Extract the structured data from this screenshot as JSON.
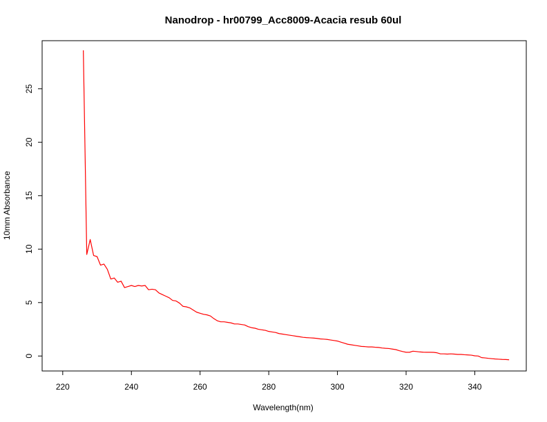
{
  "chart_data": {
    "type": "line",
    "title": "Nanodrop - hr00799_Acc8009-Acacia resub 60ul",
    "xlabel": "Wavelength(nm)",
    "ylabel": "10mm Absorbance",
    "xlim": [
      214,
      355
    ],
    "ylim": [
      -1.4,
      29.5
    ],
    "xticks": [
      220,
      240,
      260,
      280,
      300,
      320,
      340
    ],
    "yticks": [
      0,
      5,
      10,
      15,
      20,
      25
    ],
    "grid": false,
    "line_color": "#ff0000",
    "series": [
      {
        "x": [
          226,
          227,
          228,
          229,
          230,
          231,
          232,
          233,
          234,
          235,
          236,
          237,
          238,
          239,
          240,
          241,
          242,
          243,
          244,
          245,
          246,
          247,
          248,
          249,
          250,
          251,
          252,
          253,
          254,
          255,
          256,
          257,
          258,
          259,
          260,
          261,
          262,
          263,
          264,
          265,
          266,
          267,
          268,
          269,
          270,
          271,
          272,
          273,
          274,
          275,
          276,
          277,
          278,
          279,
          280,
          281,
          282,
          283,
          284,
          285,
          286,
          287,
          288,
          289,
          290,
          291,
          292,
          293,
          294,
          295,
          296,
          297,
          298,
          299,
          300,
          301,
          302,
          303,
          304,
          305,
          306,
          307,
          308,
          309,
          310,
          311,
          312,
          313,
          314,
          315,
          316,
          317,
          318,
          319,
          320,
          321,
          322,
          323,
          324,
          325,
          326,
          327,
          328,
          329,
          330,
          331,
          332,
          333,
          334,
          335,
          336,
          337,
          338,
          339,
          340,
          341,
          342,
          343,
          344,
          345,
          346,
          347,
          348,
          349,
          350
        ],
        "y": [
          28.6,
          9.5,
          10.9,
          9.4,
          9.3,
          8.5,
          8.6,
          8.1,
          7.2,
          7.3,
          6.9,
          7.0,
          6.4,
          6.5,
          6.6,
          6.5,
          6.6,
          6.55,
          6.6,
          6.2,
          6.25,
          6.2,
          5.9,
          5.75,
          5.6,
          5.45,
          5.2,
          5.15,
          4.95,
          4.65,
          4.6,
          4.5,
          4.3,
          4.1,
          4.0,
          3.9,
          3.85,
          3.75,
          3.5,
          3.3,
          3.2,
          3.2,
          3.15,
          3.1,
          3.0,
          3.0,
          2.95,
          2.9,
          2.75,
          2.65,
          2.6,
          2.5,
          2.45,
          2.4,
          2.3,
          2.25,
          2.2,
          2.1,
          2.05,
          2.0,
          1.95,
          1.9,
          1.85,
          1.8,
          1.75,
          1.72,
          1.7,
          1.68,
          1.65,
          1.6,
          1.58,
          1.55,
          1.5,
          1.45,
          1.4,
          1.3,
          1.2,
          1.1,
          1.05,
          1.0,
          0.95,
          0.9,
          0.88,
          0.85,
          0.85,
          0.82,
          0.8,
          0.75,
          0.72,
          0.7,
          0.65,
          0.6,
          0.5,
          0.42,
          0.35,
          0.35,
          0.45,
          0.42,
          0.38,
          0.36,
          0.35,
          0.35,
          0.34,
          0.3,
          0.2,
          0.2,
          0.18,
          0.2,
          0.18,
          0.15,
          0.15,
          0.12,
          0.1,
          0.08,
          0.02,
          0.0,
          -0.15,
          -0.18,
          -0.22,
          -0.25,
          -0.28,
          -0.3,
          -0.32,
          -0.33,
          -0.35
        ]
      }
    ]
  }
}
